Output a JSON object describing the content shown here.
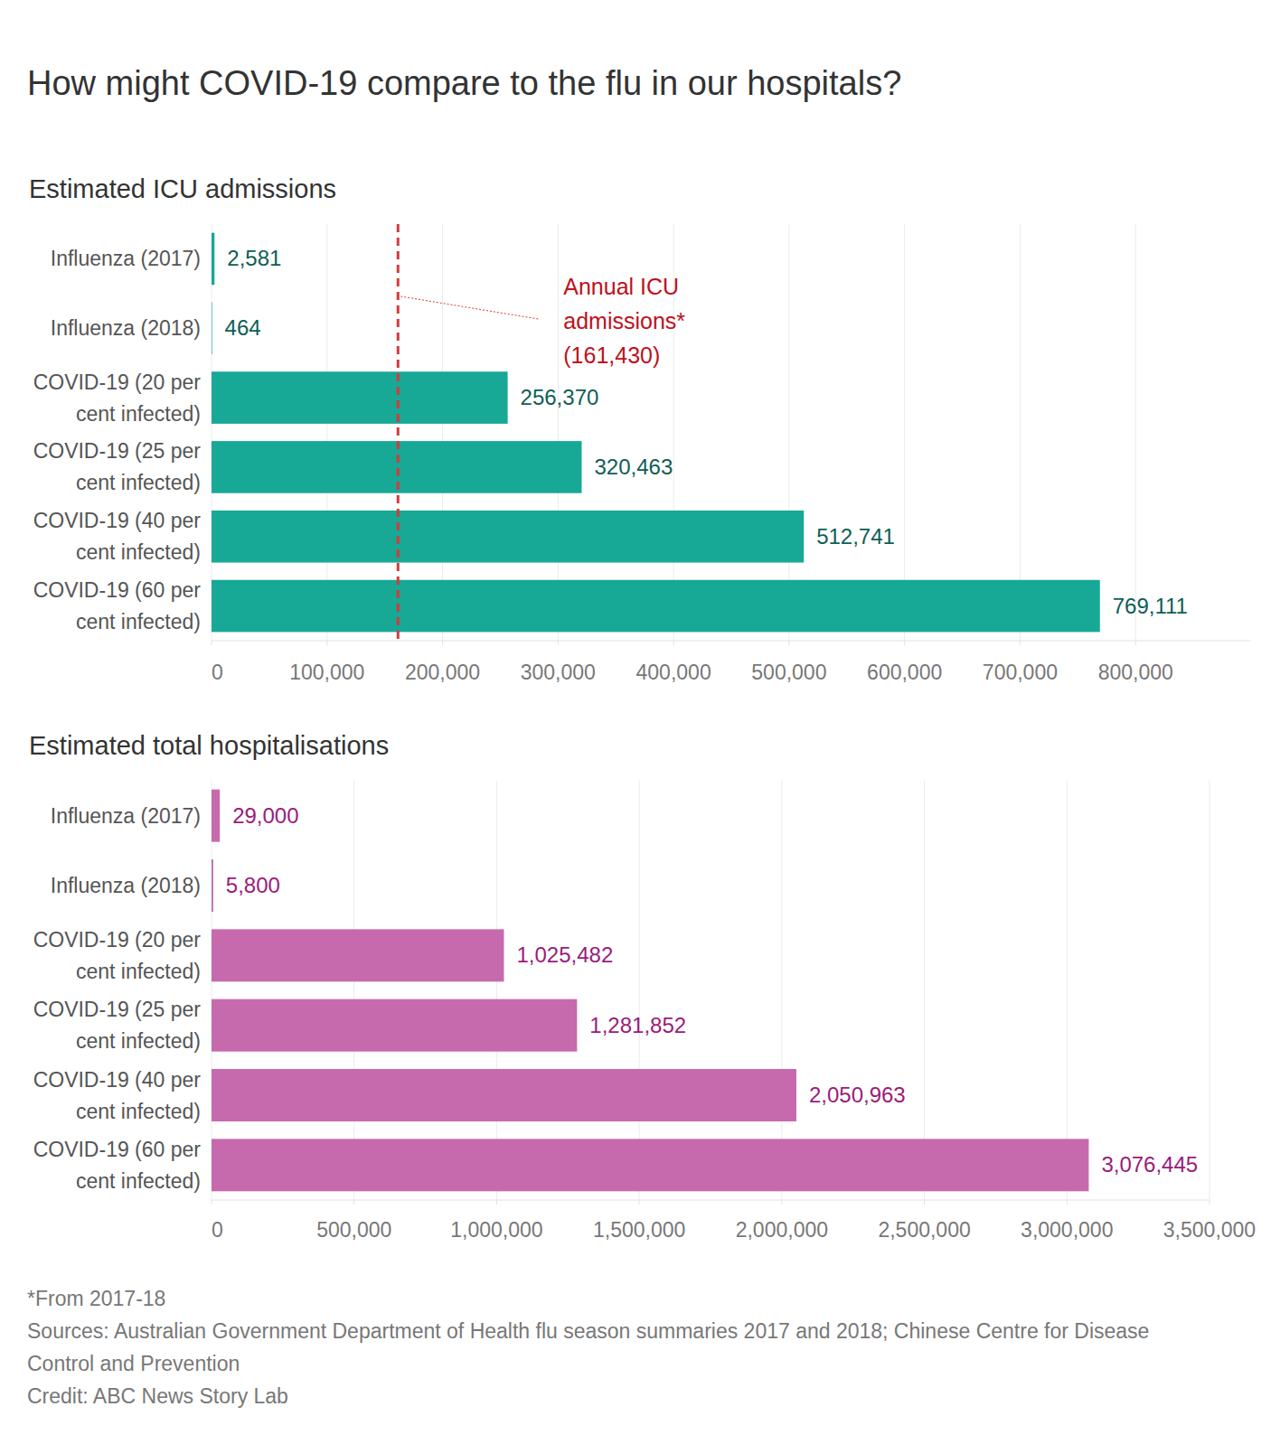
{
  "page_title": "How might COVID-19 compare to the flu in our hospitals?",
  "chart_data": [
    {
      "type": "bar",
      "orientation": "horizontal",
      "title": "Estimated ICU admissions",
      "categories": [
        "Influenza (2017)",
        "Influenza (2018)",
        "COVID-19 (20 per cent infected)",
        "COVID-19 (25 per cent infected)",
        "COVID-19 (40 per cent infected)",
        "COVID-19 (60 per cent infected)"
      ],
      "values": [
        2581,
        464,
        256370,
        320463,
        512741,
        769111
      ],
      "value_labels": [
        "2,581",
        "464",
        "256,370",
        "320,463",
        "512,741",
        "769,111"
      ],
      "color": "#17a896",
      "xlim": [
        0,
        900000
      ],
      "xticks": [
        0,
        {
          "value": 100000,
          "label": "100,000"
        },
        {
          "value": 200000,
          "label": "200,000"
        },
        {
          "value": 300000,
          "label": "300,000"
        },
        {
          "value": 400000,
          "label": "400,000"
        },
        {
          "value": 500000,
          "label": "500,000"
        },
        {
          "value": 600000,
          "label": "600,000"
        },
        {
          "value": 700000,
          "label": "700,000"
        },
        {
          "value": 800000,
          "label": "800,000"
        }
      ],
      "grid": true,
      "data_labels": true,
      "annotations": [
        {
          "text": "Annual ICU admissions*",
          "value": 161430,
          "value_label": "(161,430)",
          "color": "#d63a3a"
        }
      ]
    },
    {
      "type": "bar",
      "orientation": "horizontal",
      "title": "Estimated total hospitalisations",
      "categories": [
        "Influenza (2017)",
        "Influenza (2018)",
        "COVID-19 (20 per cent infected)",
        "COVID-19 (25 per cent infected)",
        "COVID-19 (40 per cent infected)",
        "COVID-19 (60 per cent infected)"
      ],
      "values": [
        29000,
        5800,
        1025482,
        1281852,
        2050963,
        3076445
      ],
      "value_labels": [
        "29,000",
        "5,800",
        "1,025,482",
        "1,281,852",
        "2,050,963",
        "3,076,445"
      ],
      "color": "#c66aad",
      "xlim": [
        0,
        3500000
      ],
      "xticks": [
        0,
        {
          "value": 500000,
          "label": "500,000"
        },
        {
          "value": 1000000,
          "label": "1,000,000"
        },
        {
          "value": 1500000,
          "label": "1,500,000"
        },
        {
          "value": 2000000,
          "label": "2,000,000"
        },
        {
          "value": 2500000,
          "label": "2,500,000"
        },
        {
          "value": 3000000,
          "label": "3,000,000"
        },
        {
          "value": 3500000,
          "label": "3,500,000"
        }
      ],
      "grid": true,
      "data_labels": true
    }
  ],
  "footnotes": [
    "*From 2017-18",
    "Sources: Australian Government Department of Health flu season summaries 2017 and 2018; Chinese Centre for Disease Control and Prevention",
    "Credit: ABC News Story Lab"
  ]
}
